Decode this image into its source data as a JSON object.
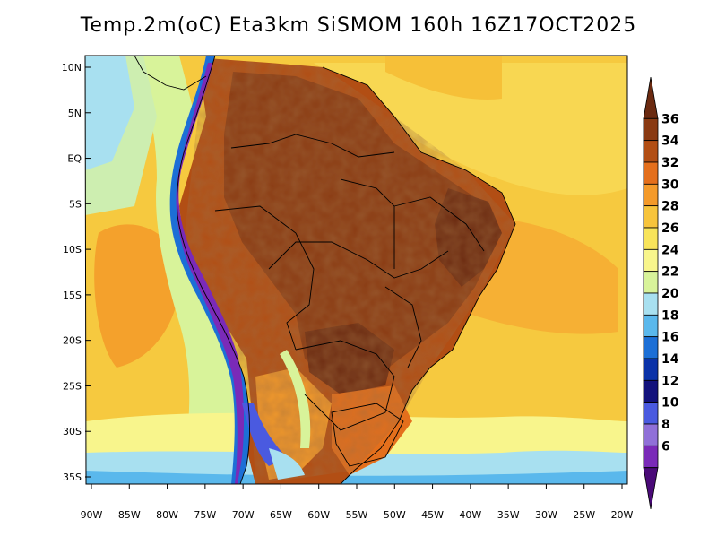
{
  "title": "Temp.2m(oC) Eta3km SiSMOM 160h 16Z17OCT2025",
  "map": {
    "lat_labels": [
      "10N",
      "5N",
      "EQ",
      "5S",
      "10S",
      "15S",
      "20S",
      "25S",
      "30S",
      "35S"
    ],
    "lat_values": [
      10,
      5,
      0,
      -5,
      -10,
      -15,
      -20,
      -25,
      -30,
      -35
    ],
    "lon_labels": [
      "90W",
      "85W",
      "80W",
      "75W",
      "70W",
      "65W",
      "60W",
      "55W",
      "50W",
      "45W",
      "40W",
      "35W",
      "30W",
      "25W",
      "20W"
    ],
    "lon_values": [
      -90,
      -85,
      -80,
      -75,
      -70,
      -65,
      -60,
      -55,
      -50,
      -45,
      -40,
      -35,
      -30,
      -25,
      -20
    ]
  },
  "colorbar": {
    "labels": [
      "36",
      "34",
      "32",
      "30",
      "28",
      "26",
      "24",
      "22",
      "20",
      "18",
      "16",
      "14",
      "12",
      "10",
      "8",
      "6"
    ],
    "colors": [
      "#6b2a10",
      "#8a3a12",
      "#b24e14",
      "#e46f1c",
      "#f49a2a",
      "#f7c43c",
      "#f8e45a",
      "#f8f58c",
      "#d8f39a",
      "#a8e0f0",
      "#5ab8ec",
      "#1c6fd6",
      "#0a32a8",
      "#13127c",
      "#4a5ae0",
      "#9070d8",
      "#7a2ab8",
      "#4a0a78"
    ]
  }
}
